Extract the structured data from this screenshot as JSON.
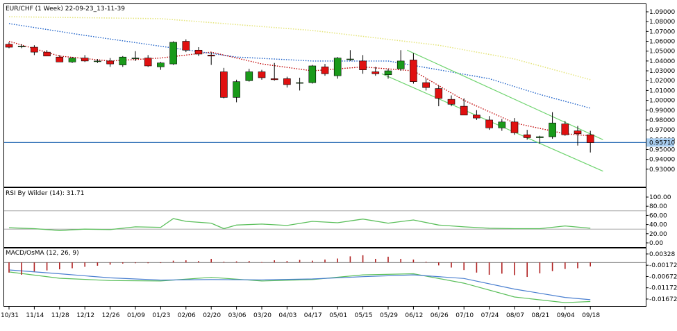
{
  "header": {
    "main_title": "EUR/CHF (1 Week) 22-09-23_13-11-39",
    "rsi_title": "RSI By Wilder (14): 31.71",
    "macd_title": "MACD/OsMA (12, 26, 9)"
  },
  "colors": {
    "up_candle": "#1a9a1a",
    "down_candle": "#e01010",
    "ma_fast": "#c00000",
    "ma_mid": "#1a5fc8",
    "ma_slow": "#e6e680",
    "channel": "#6fd46f",
    "price_line": "#2e6fb6",
    "price_label_bg": "#a9cef0",
    "rsi_line": "#5bbf5b",
    "rsi_ref": "#999999",
    "macd_line": "#4a7fd0",
    "signal_line": "#5bbf5b",
    "osma_bar": "#b02020"
  },
  "chart_data": [
    {
      "type": "candlestick",
      "title": "EUR/CHF (1 Week) 22-09-23_13-11-39",
      "ylim": [
        0.92,
        1.09
      ],
      "y_ticks": [
        "1.09000",
        "1.08000",
        "1.07000",
        "1.06000",
        "1.05000",
        "1.04000",
        "1.03000",
        "1.02000",
        "1.01000",
        "1.00000",
        "0.99000",
        "0.98000",
        "0.97000",
        "0.96000",
        "0.95000",
        "0.94000",
        "0.93000"
      ],
      "y_tick_values": [
        1.09,
        1.08,
        1.07,
        1.06,
        1.05,
        1.04,
        1.03,
        1.02,
        1.01,
        1.0,
        0.99,
        0.98,
        0.97,
        0.96,
        0.95,
        0.94,
        0.93
      ],
      "x_ticks": [
        "10/31",
        "11/14",
        "11/28",
        "12/12",
        "12/26",
        "01/09",
        "01/23",
        "02/06",
        "02/20",
        "03/06",
        "03/20",
        "04/03",
        "04/17",
        "05/01",
        "05/15",
        "05/29",
        "06/12",
        "06/26",
        "07/10",
        "07/24",
        "08/07",
        "08/21",
        "09/04",
        "09/18"
      ],
      "current_price": 0.9571,
      "current_price_label": "0.95710",
      "ohlc": [
        [
          1.057,
          1.059,
          1.053,
          1.054
        ],
        [
          1.055,
          1.057,
          1.053,
          1.055
        ],
        [
          1.054,
          1.056,
          1.046,
          1.049
        ],
        [
          1.049,
          1.051,
          1.045,
          1.045
        ],
        [
          1.044,
          1.046,
          1.039,
          1.039
        ],
        [
          1.039,
          1.044,
          1.038,
          1.043
        ],
        [
          1.043,
          1.046,
          1.039,
          1.04
        ],
        [
          1.04,
          1.042,
          1.038,
          1.04
        ],
        [
          1.04,
          1.043,
          1.034,
          1.037
        ],
        [
          1.036,
          1.045,
          1.034,
          1.044
        ],
        [
          1.043,
          1.05,
          1.04,
          1.043
        ],
        [
          1.043,
          1.046,
          1.034,
          1.035
        ],
        [
          1.034,
          1.039,
          1.031,
          1.038
        ],
        [
          1.037,
          1.06,
          1.036,
          1.059
        ],
        [
          1.06,
          1.062,
          1.049,
          1.051
        ],
        [
          1.051,
          1.054,
          1.045,
          1.047
        ],
        [
          1.046,
          1.049,
          1.036,
          1.045
        ],
        [
          1.029,
          1.033,
          1.002,
          1.003
        ],
        [
          1.003,
          1.021,
          0.998,
          1.019
        ],
        [
          1.02,
          1.032,
          1.019,
          1.029
        ],
        [
          1.029,
          1.031,
          1.021,
          1.023
        ],
        [
          1.022,
          1.038,
          1.02,
          1.021
        ],
        [
          1.022,
          1.024,
          1.013,
          1.016
        ],
        [
          1.018,
          1.023,
          1.01,
          1.018
        ],
        [
          1.018,
          1.036,
          1.017,
          1.035
        ],
        [
          1.034,
          1.037,
          1.025,
          1.027
        ],
        [
          1.025,
          1.044,
          1.022,
          1.043
        ],
        [
          1.042,
          1.051,
          1.04,
          1.042
        ],
        [
          1.04,
          1.046,
          1.027,
          1.031
        ],
        [
          1.029,
          1.034,
          1.025,
          1.027
        ],
        [
          1.026,
          1.032,
          1.022,
          1.03
        ],
        [
          1.032,
          1.051,
          1.03,
          1.04
        ],
        [
          1.041,
          1.048,
          1.017,
          1.019
        ],
        [
          1.018,
          1.022,
          1.01,
          1.013
        ],
        [
          1.012,
          1.015,
          0.994,
          1.002
        ],
        [
          1.001,
          1.005,
          0.994,
          0.996
        ],
        [
          0.994,
          1.002,
          0.985,
          0.985
        ],
        [
          0.985,
          0.99,
          0.98,
          0.982
        ],
        [
          0.98,
          0.984,
          0.97,
          0.972
        ],
        [
          0.972,
          0.981,
          0.969,
          0.978
        ],
        [
          0.978,
          0.982,
          0.965,
          0.967
        ],
        [
          0.965,
          0.97,
          0.96,
          0.962
        ],
        [
          0.962,
          0.964,
          0.956,
          0.963
        ],
        [
          0.963,
          0.988,
          0.961,
          0.977
        ],
        [
          0.976,
          0.979,
          0.964,
          0.965
        ],
        [
          0.969,
          0.974,
          0.954,
          0.966
        ],
        [
          0.965,
          0.969,
          0.947,
          0.957
        ]
      ],
      "series": [
        {
          "kind": "ma_fast",
          "style": "dotted",
          "x": [
            0,
            4,
            8,
            12,
            16,
            20,
            24,
            28,
            32,
            36,
            40,
            44,
            46
          ],
          "y": [
            1.06,
            1.045,
            1.04,
            1.043,
            1.049,
            1.037,
            1.03,
            1.034,
            1.03,
            1.0,
            0.977,
            0.966,
            0.964
          ]
        },
        {
          "kind": "ma_mid",
          "style": "dotted",
          "x": [
            0,
            6,
            12,
            18,
            24,
            30,
            34,
            38,
            42,
            46
          ],
          "y": [
            1.078,
            1.066,
            1.055,
            1.044,
            1.04,
            1.04,
            1.031,
            1.022,
            1.006,
            0.992
          ]
        },
        {
          "kind": "ma_slow",
          "style": "dotted",
          "x": [
            0,
            12,
            24,
            34,
            40,
            46
          ],
          "y": [
            1.085,
            1.083,
            1.071,
            1.056,
            1.042,
            1.021
          ]
        },
        {
          "kind": "channel_upper",
          "x": [
            31.5,
            47
          ],
          "y": [
            1.051,
            0.96
          ]
        },
        {
          "kind": "channel_lower",
          "x": [
            29.5,
            47
          ],
          "y": [
            1.027,
            0.928
          ]
        }
      ]
    },
    {
      "type": "line",
      "title": "RSI By Wilder (14): 31.71",
      "ylim": [
        0,
        100
      ],
      "y_ticks": [
        "100.00",
        "80.00",
        "60.00",
        "40.00",
        "20.00",
        "0.00"
      ],
      "y_tick_values": [
        100,
        80,
        60,
        40,
        20,
        0
      ],
      "reference_levels": [
        70,
        30
      ],
      "series": [
        {
          "kind": "rsi",
          "x": [
            0,
            2,
            4,
            6,
            8,
            10,
            12,
            13,
            14,
            16,
            17,
            18,
            20,
            22,
            24,
            26,
            28,
            30,
            32,
            34,
            36,
            38,
            40,
            42,
            44,
            46
          ],
          "y": [
            33,
            31,
            27,
            30,
            29,
            35,
            34,
            53,
            47,
            43,
            31,
            39,
            41,
            38,
            47,
            44,
            52,
            43,
            50,
            39,
            35,
            32,
            31,
            31,
            37,
            32
          ]
        }
      ]
    },
    {
      "type": "line",
      "title": "MACD/OsMA (12, 26, 9)",
      "ylim": [
        -0.0195,
        0.0045
      ],
      "y_ticks": [
        "0.00328",
        "-0.00172",
        "-0.00672",
        "-0.01172",
        "-0.01672"
      ],
      "y_tick_values": [
        0.00328,
        -0.00172,
        -0.00672,
        -0.01172,
        -0.01672
      ],
      "series": [
        {
          "kind": "macd",
          "x": [
            0,
            4,
            8,
            12,
            16,
            20,
            24,
            28,
            32,
            36,
            40,
            44,
            46
          ],
          "y": [
            -0.0047,
            -0.0075,
            -0.0085,
            -0.0087,
            -0.0071,
            -0.0087,
            -0.0081,
            -0.006,
            -0.0055,
            -0.0097,
            -0.0158,
            -0.0183,
            -0.0178
          ]
        },
        {
          "kind": "signal",
          "x": [
            0,
            4,
            8,
            12,
            16,
            20,
            24,
            28,
            32,
            36,
            40,
            44,
            46
          ],
          "y": [
            -0.0038,
            -0.0055,
            -0.0073,
            -0.0083,
            -0.0081,
            -0.0082,
            -0.0078,
            -0.0068,
            -0.006,
            -0.0076,
            -0.0123,
            -0.016,
            -0.017
          ]
        },
        {
          "kind": "osma",
          "x": [
            0,
            1,
            2,
            3,
            4,
            5,
            6,
            7,
            8,
            9,
            10,
            11,
            12,
            13,
            14,
            15,
            16,
            17,
            18,
            19,
            20,
            21,
            22,
            23,
            24,
            25,
            26,
            27,
            28,
            29,
            30,
            31,
            32,
            33,
            34,
            35,
            36,
            37,
            38,
            39,
            40,
            41,
            42,
            43,
            44,
            45,
            46
          ],
          "y": [
            -0.0028,
            -0.0034,
            -0.0025,
            -0.0022,
            -0.0019,
            -0.0016,
            -0.0012,
            -0.0009,
            -0.0006,
            -0.0003,
            -0.0002,
            -0.0002,
            -0.0001,
            0.0005,
            0.0006,
            0.0004,
            0.001,
            0.0002,
            0.0003,
            0.0004,
            0.0001,
            0.0006,
            0.0004,
            0.0007,
            0.0005,
            0.0008,
            0.0011,
            0.0017,
            0.002,
            0.001,
            0.0016,
            0.001,
            0.0008,
            0.0002,
            -0.0008,
            -0.0014,
            -0.0021,
            -0.0028,
            -0.0034,
            -0.0031,
            -0.0035,
            -0.004,
            -0.003,
            -0.0024,
            -0.0018,
            -0.0016,
            -0.0011
          ]
        }
      ]
    }
  ]
}
